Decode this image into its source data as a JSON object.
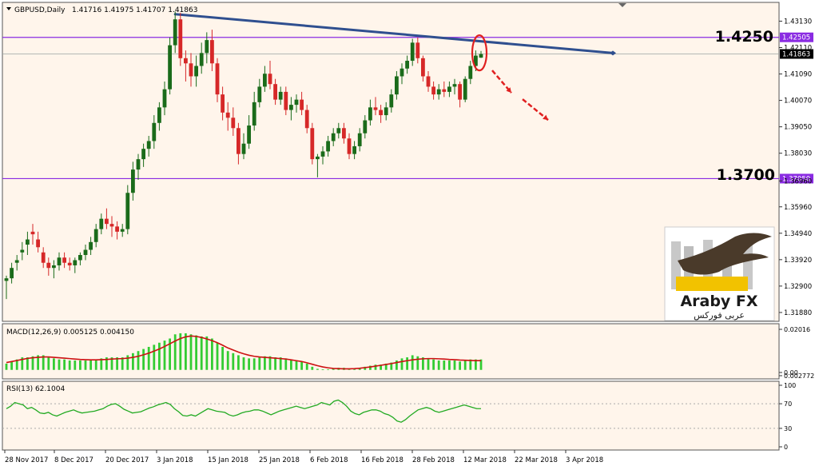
{
  "chart_data": {
    "type": "candlestick",
    "symbol_header": "GBPUSD,Daily",
    "ohlc_header": "1.41716 1.41975 1.41707 1.41863",
    "main": {
      "ylim": [
        1.316,
        1.437
      ],
      "price_ticks": [
        "1.43130",
        "1.42110",
        "1.41090",
        "1.40070",
        "1.39050",
        "1.38030",
        "1.36960",
        "1.35960",
        "1.34940",
        "1.33920",
        "1.32900",
        "1.31880"
      ],
      "candles": [
        [
          1.331,
          1.333,
          1.324,
          1.332
        ],
        [
          1.332,
          1.338,
          1.33,
          1.336
        ],
        [
          1.338,
          1.341,
          1.335,
          1.339
        ],
        [
          1.342,
          1.346,
          1.339,
          1.343
        ],
        [
          1.345,
          1.35,
          1.341,
          1.347
        ],
        [
          1.35,
          1.353,
          1.345,
          1.349
        ],
        [
          1.347,
          1.35,
          1.342,
          1.344
        ],
        [
          1.342,
          1.344,
          1.336,
          1.338
        ],
        [
          1.338,
          1.34,
          1.333,
          1.336
        ],
        [
          1.336,
          1.339,
          1.332,
          1.337
        ],
        [
          1.337,
          1.342,
          1.335,
          1.34
        ],
        [
          1.34,
          1.342,
          1.336,
          1.338
        ],
        [
          1.338,
          1.34,
          1.335,
          1.337
        ],
        [
          1.337,
          1.34,
          1.334,
          1.339
        ],
        [
          1.339,
          1.342,
          1.337,
          1.341
        ],
        [
          1.341,
          1.345,
          1.339,
          1.343
        ],
        [
          1.343,
          1.348,
          1.341,
          1.346
        ],
        [
          1.346,
          1.353,
          1.344,
          1.351
        ],
        [
          1.351,
          1.357,
          1.349,
          1.355
        ],
        [
          1.355,
          1.359,
          1.351,
          1.353
        ],
        [
          1.353,
          1.356,
          1.348,
          1.352
        ],
        [
          1.352,
          1.354,
          1.347,
          1.35
        ],
        [
          1.35,
          1.353,
          1.348,
          1.351
        ],
        [
          1.351,
          1.368,
          1.349,
          1.365
        ],
        [
          1.365,
          1.377,
          1.362,
          1.374
        ],
        [
          1.374,
          1.38,
          1.37,
          1.378
        ],
        [
          1.378,
          1.384,
          1.375,
          1.382
        ],
        [
          1.382,
          1.387,
          1.379,
          1.385
        ],
        [
          1.385,
          1.395,
          1.382,
          1.392
        ],
        [
          1.392,
          1.4,
          1.389,
          1.398
        ],
        [
          1.398,
          1.408,
          1.395,
          1.405
        ],
        [
          1.405,
          1.425,
          1.403,
          1.422
        ],
        [
          1.422,
          1.435,
          1.419,
          1.432
        ],
        [
          1.432,
          1.4345,
          1.414,
          1.417
        ],
        [
          1.417,
          1.42,
          1.408,
          1.415
        ],
        [
          1.415,
          1.419,
          1.406,
          1.41
        ],
        [
          1.41,
          1.418,
          1.406,
          1.414
        ],
        [
          1.414,
          1.423,
          1.411,
          1.419
        ],
        [
          1.419,
          1.427,
          1.415,
          1.424
        ],
        [
          1.424,
          1.428,
          1.412,
          1.415
        ],
        [
          1.415,
          1.417,
          1.4,
          1.403
        ],
        [
          1.403,
          1.406,
          1.393,
          1.396
        ],
        [
          1.396,
          1.4,
          1.389,
          1.394
        ],
        [
          1.394,
          1.398,
          1.387,
          1.39
        ],
        [
          1.39,
          1.392,
          1.376,
          1.38
        ],
        [
          1.38,
          1.388,
          1.378,
          1.384
        ],
        [
          1.384,
          1.395,
          1.382,
          1.391
        ],
        [
          1.391,
          1.404,
          1.389,
          1.4
        ],
        [
          1.4,
          1.409,
          1.398,
          1.406
        ],
        [
          1.406,
          1.414,
          1.404,
          1.411
        ],
        [
          1.411,
          1.416,
          1.405,
          1.407
        ],
        [
          1.407,
          1.409,
          1.399,
          1.401
        ],
        [
          1.401,
          1.406,
          1.399,
          1.404
        ],
        [
          1.404,
          1.406,
          1.395,
          1.397
        ],
        [
          1.397,
          1.402,
          1.393,
          1.399
        ],
        [
          1.399,
          1.403,
          1.396,
          1.401
        ],
        [
          1.401,
          1.404,
          1.395,
          1.397
        ],
        [
          1.397,
          1.399,
          1.388,
          1.39
        ],
        [
          1.39,
          1.392,
          1.376,
          1.378
        ],
        [
          1.378,
          1.38,
          1.371,
          1.379
        ],
        [
          1.379,
          1.383,
          1.376,
          1.381
        ],
        [
          1.381,
          1.387,
          1.379,
          1.385
        ],
        [
          1.385,
          1.39,
          1.383,
          1.388
        ],
        [
          1.388,
          1.392,
          1.386,
          1.39
        ],
        [
          1.39,
          1.392,
          1.384,
          1.386
        ],
        [
          1.386,
          1.388,
          1.378,
          1.38
        ],
        [
          1.38,
          1.385,
          1.378,
          1.383
        ],
        [
          1.383,
          1.39,
          1.381,
          1.388
        ],
        [
          1.388,
          1.395,
          1.386,
          1.393
        ],
        [
          1.393,
          1.401,
          1.391,
          1.398
        ],
        [
          1.398,
          1.402,
          1.395,
          1.397
        ],
        [
          1.397,
          1.399,
          1.392,
          1.395
        ],
        [
          1.395,
          1.4,
          1.393,
          1.398
        ],
        [
          1.398,
          1.405,
          1.396,
          1.403
        ],
        [
          1.403,
          1.412,
          1.401,
          1.41
        ],
        [
          1.41,
          1.415,
          1.407,
          1.413
        ],
        [
          1.413,
          1.418,
          1.411,
          1.416
        ],
        [
          1.416,
          1.4245,
          1.414,
          1.423
        ],
        [
          1.423,
          1.425,
          1.415,
          1.417
        ],
        [
          1.417,
          1.418,
          1.408,
          1.41
        ],
        [
          1.41,
          1.412,
          1.404,
          1.406
        ],
        [
          1.406,
          1.408,
          1.401,
          1.403
        ],
        [
          1.403,
          1.407,
          1.401,
          1.405
        ],
        [
          1.405,
          1.408,
          1.402,
          1.404
        ],
        [
          1.404,
          1.408,
          1.402,
          1.406
        ],
        [
          1.406,
          1.409,
          1.403,
          1.407
        ],
        [
          1.407,
          1.408,
          1.398,
          1.401
        ],
        [
          1.401,
          1.41,
          1.4,
          1.409
        ],
        [
          1.409,
          1.416,
          1.407,
          1.414
        ],
        [
          1.414,
          1.42,
          1.412,
          1.418
        ],
        [
          1.4172,
          1.4198,
          1.4171,
          1.4186
        ]
      ],
      "level_lines": [
        {
          "value": 1.42505,
          "label": "1.42505",
          "big_label": "1.4250",
          "color": "#8a2be2"
        },
        {
          "value": 1.3705,
          "label": "1.37050",
          "big_label": "1.3700",
          "color": "#8a2be2"
        }
      ],
      "current_price": {
        "value": 1.41863,
        "label": "1.41863"
      },
      "trendline": {
        "from": {
          "bar": 32,
          "price": 1.434
        },
        "to": {
          "bar": 115,
          "price": 1.419
        },
        "color": "#2f4f8f"
      }
    },
    "macd": {
      "header": "MACD(12,26,9) 0.005125 0.004150",
      "ticks": [
        "0.02016",
        "0.00",
        "0.002772"
      ],
      "ylim": [
        -0.002772,
        0.02016
      ],
      "histogram": [
        0.003,
        0.004,
        0.005,
        0.006,
        0.006,
        0.0065,
        0.007,
        0.007,
        0.006,
        0.0055,
        0.005,
        0.005,
        0.0045,
        0.0045,
        0.0045,
        0.0045,
        0.0045,
        0.005,
        0.0055,
        0.006,
        0.006,
        0.006,
        0.006,
        0.007,
        0.008,
        0.009,
        0.01,
        0.011,
        0.012,
        0.013,
        0.014,
        0.015,
        0.017,
        0.0175,
        0.0175,
        0.017,
        0.0165,
        0.016,
        0.016,
        0.015,
        0.013,
        0.011,
        0.009,
        0.008,
        0.007,
        0.006,
        0.0055,
        0.0055,
        0.006,
        0.0065,
        0.0065,
        0.006,
        0.006,
        0.0055,
        0.005,
        0.0045,
        0.004,
        0.003,
        0.0015,
        0.0005,
        0.0002,
        0.0003,
        0.0005,
        0.001,
        0.001,
        0.0005,
        0.0005,
        0.001,
        0.0015,
        0.002,
        0.0025,
        0.0025,
        0.003,
        0.0035,
        0.0045,
        0.0055,
        0.006,
        0.007,
        0.0065,
        0.006,
        0.0055,
        0.005,
        0.0045,
        0.0045,
        0.0045,
        0.0045,
        0.004,
        0.0045,
        0.005,
        0.005,
        0.005
      ],
      "signal": [
        0.0035,
        0.004,
        0.0045,
        0.005,
        0.0055,
        0.0058,
        0.006,
        0.0062,
        0.0062,
        0.006,
        0.0058,
        0.0056,
        0.0054,
        0.0052,
        0.005,
        0.0049,
        0.0048,
        0.0048,
        0.0049,
        0.005,
        0.0052,
        0.0053,
        0.0054,
        0.0056,
        0.006,
        0.0065,
        0.0072,
        0.008,
        0.009,
        0.01,
        0.0112,
        0.0125,
        0.0138,
        0.015,
        0.0158,
        0.0162,
        0.016,
        0.0155,
        0.0148,
        0.014,
        0.013,
        0.0118,
        0.0105,
        0.0095,
        0.0085,
        0.0077,
        0.007,
        0.0065,
        0.0062,
        0.006,
        0.0058,
        0.0056,
        0.0054,
        0.0052,
        0.0048,
        0.0044,
        0.004,
        0.0034,
        0.0027,
        0.002,
        0.0014,
        0.001,
        0.0007,
        0.0006,
        0.0005,
        0.0005,
        0.0006,
        0.0008,
        0.0011,
        0.0014,
        0.0018,
        0.0022,
        0.0026,
        0.003,
        0.0035,
        0.004,
        0.0044,
        0.0048,
        0.0051,
        0.0053,
        0.0054,
        0.0054,
        0.0053,
        0.0052,
        0.005,
        0.0049,
        0.0047,
        0.0046,
        0.0045,
        0.0044,
        0.0044
      ]
    },
    "rsi": {
      "header": "RSI(13) 62.1004",
      "ticks": [
        "100",
        "70",
        "30",
        "0"
      ],
      "levels": [
        70,
        30
      ],
      "ylim": [
        0,
        100
      ],
      "values": [
        62,
        66,
        72,
        70,
        68,
        62,
        64,
        60,
        55,
        54,
        56,
        52,
        50,
        53,
        56,
        58,
        60,
        57,
        55,
        56,
        57,
        58,
        60,
        62,
        66,
        69,
        70,
        66,
        61,
        58,
        55,
        56,
        57,
        60,
        63,
        65,
        68,
        70,
        72,
        69,
        62,
        57,
        51,
        50,
        52,
        50,
        54,
        58,
        62,
        60,
        58,
        57,
        56,
        52,
        50,
        52,
        55,
        57,
        58,
        60,
        60,
        58,
        55,
        52,
        55,
        58,
        60,
        62,
        64,
        66,
        64,
        62,
        64,
        66,
        68,
        72,
        70,
        68,
        74,
        76,
        72,
        66,
        58,
        54,
        52,
        56,
        58,
        60,
        60,
        58,
        54,
        52,
        48,
        42,
        40,
        44,
        50,
        55,
        60,
        62,
        64,
        62,
        58,
        56,
        58,
        60,
        62,
        64,
        66,
        68,
        66,
        64,
        62,
        62
      ],
      "series_name": ""
    },
    "x_axis_labels": [
      "28 Nov 2017",
      "8 Dec 2017",
      "20 Dec 2017",
      "3 Jan 2018",
      "15 Jan 2018",
      "25 Jan 2018",
      "6 Feb 2018",
      "16 Feb 2018",
      "28 Feb 2018",
      "12 Mar 2018",
      "22 Mar 2018",
      "3 Apr 2018"
    ],
    "colors": {
      "bull": "#1a6b1a",
      "bear": "#d62828",
      "background": "#fff5eb",
      "macd_hist": "#33cc33",
      "signal": "#cc1111",
      "rsi": "#22aa22",
      "annotation": "#e02020"
    },
    "logo": {
      "name": "Araby FX",
      "arabic": "عربى فوركس"
    }
  }
}
